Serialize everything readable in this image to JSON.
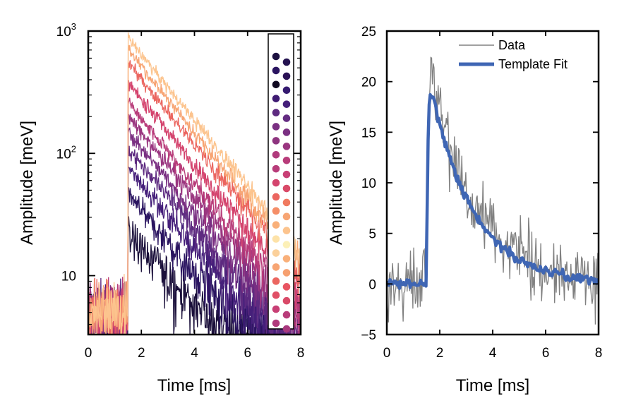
{
  "chart_data": [
    {
      "type": "line",
      "panel": "left",
      "title": "",
      "xlabel": "Time [ms]",
      "ylabel": "Amplitude [meV]",
      "xlim": [
        0,
        8
      ],
      "ylim": [
        3.3,
        1000
      ],
      "yscale": "log",
      "xticks": [
        0,
        2,
        4,
        6,
        8
      ],
      "xtick_labels": [
        "0",
        "2",
        "4",
        "6",
        "8"
      ],
      "yticks": [
        10,
        100,
        1000
      ],
      "ytick_labels": [
        "10",
        "10",
        "10"
      ],
      "ytick_exponents": [
        "",
        "2",
        "3"
      ],
      "pulse_onset_ms": 1.5,
      "decay_time_ms": 1.6,
      "series": [
        {
          "color": "#1a0f3a",
          "peak": 22
        },
        {
          "color": "#2a1460",
          "peak": 45
        },
        {
          "color": "#451f7a",
          "peak": 75
        },
        {
          "color": "#5d2a80",
          "peak": 110
        },
        {
          "color": "#7a2f82",
          "peak": 150
        },
        {
          "color": "#9a3680",
          "peak": 200
        },
        {
          "color": "#b83c7a",
          "peak": 260
        },
        {
          "color": "#d4446e",
          "peak": 380
        },
        {
          "color": "#eb6660",
          "peak": 560
        },
        {
          "color": "#f7a574",
          "peak": 700
        },
        {
          "color": "#fcc48e",
          "peak": 880
        }
      ],
      "legend": {
        "placement": "right",
        "frame": true,
        "marker_colors": [
          [
            "#1c1040",
            "#241350"
          ],
          [
            "#2a1460",
            "#2b1255"
          ],
          [
            "#100820",
            "#351a70"
          ],
          [
            "#3e1a72",
            "#451f7a"
          ],
          [
            "#5d2a80",
            "#642c82"
          ],
          [
            "#7a2f82",
            "#7a2f82"
          ],
          [
            "#8e347f",
            "#9a3680"
          ],
          [
            "#b03a7c",
            "#b83c7a"
          ],
          [
            "#b83c7a",
            "#c83f75"
          ],
          [
            "#d4446e",
            "#d94a68"
          ],
          [
            "#eb6660",
            "#f07a60"
          ],
          [
            "#f58e68",
            "#f7a574"
          ],
          [
            "#f9b07a",
            "#fcc48e"
          ],
          [
            "#fde2a8",
            "#fcf0b8"
          ],
          [
            "#fbd09a",
            "#f9b07a"
          ],
          [
            "#f7a574",
            "#f6a070"
          ],
          [
            "#eb6660",
            "#e85562"
          ],
          [
            "#e04f66",
            "#d94a68"
          ],
          [
            "#c83f75",
            "#b83c7a"
          ],
          [
            "#b03a7c",
            "#a8387e"
          ]
        ]
      }
    },
    {
      "type": "line",
      "panel": "right",
      "title": "",
      "xlabel": "Time [ms]",
      "ylabel": "Amplitude [meV]",
      "xlim": [
        0,
        8
      ],
      "ylim": [
        -5,
        25
      ],
      "xticks": [
        0,
        2,
        4,
        6,
        8
      ],
      "xtick_labels": [
        "0",
        "2",
        "4",
        "6",
        "8"
      ],
      "yticks": [
        -5,
        0,
        5,
        10,
        15,
        20,
        25
      ],
      "ytick_labels": [
        "−5",
        "0",
        "5",
        "10",
        "15",
        "20",
        "25"
      ],
      "legend": {
        "placement": "top-right",
        "frame": false
      },
      "series": [
        {
          "name": "Data",
          "color": "#808080",
          "style": "thin",
          "peak": 21.5,
          "onset_ms": 1.5,
          "decay_ms": 1.6
        },
        {
          "name": "Template Fit",
          "color": "#3f66b4",
          "style": "thick",
          "peak": 20.5,
          "onset_ms": 1.5,
          "decay_ms": 1.6
        }
      ]
    }
  ]
}
